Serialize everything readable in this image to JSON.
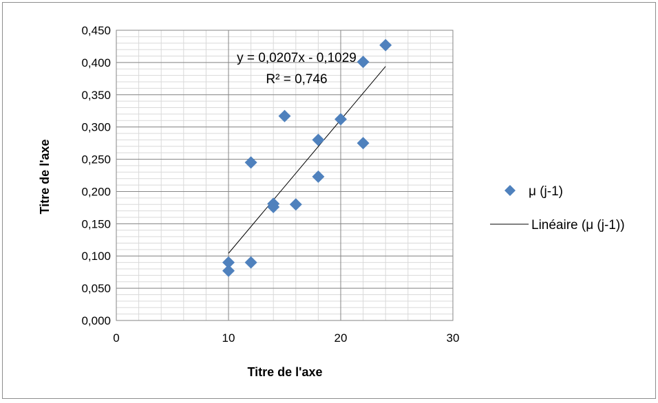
{
  "chart_data": {
    "type": "scatter",
    "title": "",
    "xlabel": "Titre de l'axe",
    "ylabel": "Titre de l'axe",
    "xlim": [
      0,
      30
    ],
    "ylim": [
      0,
      0.45
    ],
    "x_ticks": [
      0,
      10,
      20,
      30
    ],
    "x_tick_labels": [
      "0",
      "10",
      "20",
      "30"
    ],
    "y_ticks": [
      0,
      0.05,
      0.1,
      0.15,
      0.2,
      0.25,
      0.3,
      0.35,
      0.4,
      0.45
    ],
    "y_tick_labels": [
      "0,000",
      "0,050",
      "0,100",
      "0,150",
      "0,200",
      "0,250",
      "0,300",
      "0,350",
      "0,400",
      "0,450"
    ],
    "grid": true,
    "legend_position": "right",
    "series": [
      {
        "name": "μ (j-1)",
        "marker": "diamond",
        "color": "#4f81bd",
        "points": [
          {
            "x": 10,
            "y": 0.077
          },
          {
            "x": 10,
            "y": 0.09
          },
          {
            "x": 12,
            "y": 0.09
          },
          {
            "x": 12,
            "y": 0.245
          },
          {
            "x": 14,
            "y": 0.181
          },
          {
            "x": 14,
            "y": 0.176
          },
          {
            "x": 15,
            "y": 0.317
          },
          {
            "x": 16,
            "y": 0.18
          },
          {
            "x": 18,
            "y": 0.28
          },
          {
            "x": 18,
            "y": 0.223
          },
          {
            "x": 20,
            "y": 0.312
          },
          {
            "x": 22,
            "y": 0.401
          },
          {
            "x": 22,
            "y": 0.275
          },
          {
            "x": 24,
            "y": 0.427
          }
        ]
      }
    ],
    "trendline": {
      "name": "Linéaire (μ (j-1))",
      "type": "linear",
      "slope": 0.0207,
      "intercept": -0.1029,
      "x_range": [
        10,
        24
      ],
      "color": "#000000"
    },
    "annotations": {
      "equation": "y = 0,0207x - 0,1029",
      "r_squared": "R² = 0,746"
    }
  }
}
